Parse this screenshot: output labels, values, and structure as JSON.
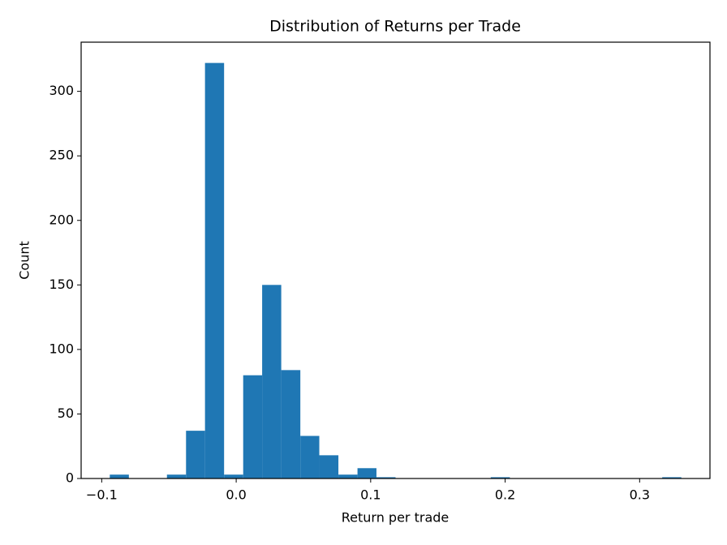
{
  "chart_data": {
    "type": "histogram",
    "title": "Distribution of Returns per Trade",
    "x_label": "Return per trade",
    "y_label": "Count",
    "color": "#1f77b4",
    "bins": [
      -0.094,
      -0.0798,
      -0.0657,
      -0.0515,
      -0.0373,
      -0.0232,
      -0.009,
      0.0052,
      0.0193,
      0.0335,
      0.0477,
      0.0618,
      0.076,
      0.0902,
      0.1043,
      0.1185,
      0.1327,
      0.1468,
      0.161,
      0.1752,
      0.1893,
      0.2035,
      0.2177,
      0.2318,
      0.246,
      0.2602,
      0.2743,
      0.2885,
      0.3027,
      0.3168,
      0.331
    ],
    "values": [
      3,
      0,
      0,
      3,
      37,
      322,
      3,
      80,
      150,
      84,
      33,
      18,
      3,
      8,
      1,
      0,
      0,
      0,
      0,
      0,
      1,
      0,
      0,
      0,
      0,
      0,
      0,
      0,
      0,
      1
    ],
    "xlim": [
      -0.1153,
      0.3523
    ],
    "xticks": [
      {
        "value": -0.1,
        "label": "−0.1"
      },
      {
        "value": 0,
        "label": "0.0"
      },
      0.1,
      0.2,
      0.3
    ],
    "ylim": [
      0,
      338.1
    ],
    "yticks": [
      0,
      50,
      100,
      150,
      200,
      250,
      300
    ]
  }
}
